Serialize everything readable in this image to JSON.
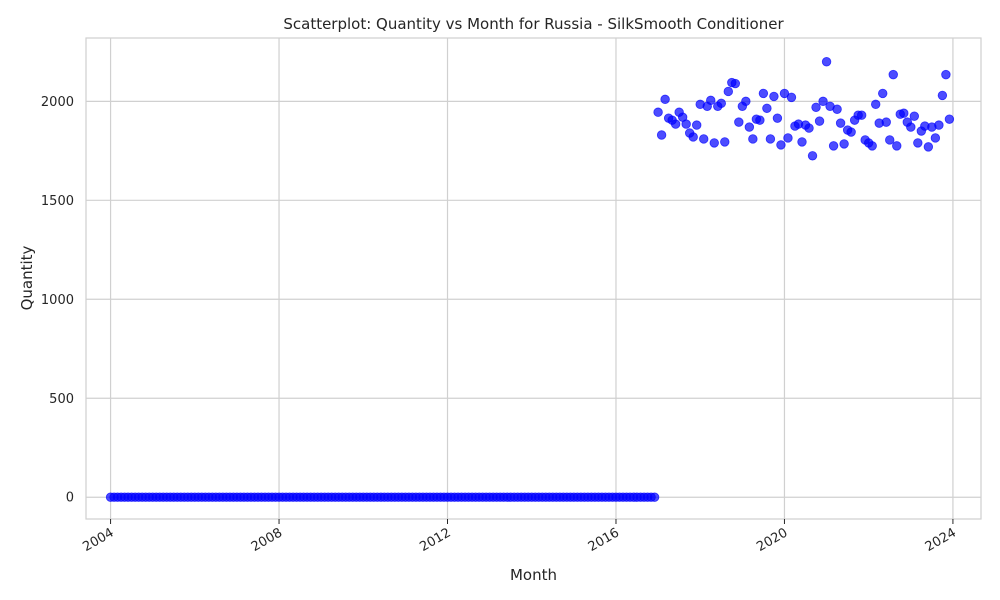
{
  "chart_data": {
    "type": "scatter",
    "title": "Scatterplot: Quantity vs Month for Russia - SilkSmooth Conditioner",
    "xlabel": "Month",
    "ylabel": "Quantity",
    "grid": true,
    "legend": "none",
    "color": "#0000ff",
    "xlim": [
      "2003-06",
      "2024-09"
    ],
    "ylim": [
      -110,
      2320
    ],
    "x_ticks": [
      "2004",
      "2008",
      "2012",
      "2016",
      "2020",
      "2024"
    ],
    "y_ticks": [
      "0",
      "500",
      "1000",
      "1500",
      "2000"
    ],
    "zero_period": {
      "start": "2004-01",
      "end": "2016-12",
      "value": 0
    },
    "series": [
      {
        "values": [
          [
            "2017-01",
            1945
          ],
          [
            "2017-02",
            1830
          ],
          [
            "2017-03",
            2010
          ],
          [
            "2017-04",
            1915
          ],
          [
            "2017-05",
            1905
          ],
          [
            "2017-06",
            1885
          ],
          [
            "2017-07",
            1945
          ],
          [
            "2017-08",
            1920
          ],
          [
            "2017-09",
            1885
          ],
          [
            "2017-10",
            1840
          ],
          [
            "2017-11",
            1820
          ],
          [
            "2017-12",
            1880
          ],
          [
            "2018-01",
            1985
          ],
          [
            "2018-02",
            1810
          ],
          [
            "2018-03",
            1975
          ],
          [
            "2018-04",
            2005
          ],
          [
            "2018-05",
            1790
          ],
          [
            "2018-06",
            1975
          ],
          [
            "2018-07",
            1990
          ],
          [
            "2018-08",
            1795
          ],
          [
            "2018-09",
            2050
          ],
          [
            "2018-10",
            2095
          ],
          [
            "2018-11",
            2090
          ],
          [
            "2018-12",
            1895
          ],
          [
            "2019-01",
            1975
          ],
          [
            "2019-02",
            2000
          ],
          [
            "2019-03",
            1870
          ],
          [
            "2019-04",
            1810
          ],
          [
            "2019-05",
            1910
          ],
          [
            "2019-06",
            1905
          ],
          [
            "2019-07",
            2040
          ],
          [
            "2019-08",
            1965
          ],
          [
            "2019-09",
            1810
          ],
          [
            "2019-10",
            2025
          ],
          [
            "2019-11",
            1915
          ],
          [
            "2019-12",
            1780
          ],
          [
            "2020-01",
            2040
          ],
          [
            "2020-02",
            1815
          ],
          [
            "2020-03",
            2020
          ],
          [
            "2020-04",
            1875
          ],
          [
            "2020-05",
            1885
          ],
          [
            "2020-06",
            1795
          ],
          [
            "2020-07",
            1880
          ],
          [
            "2020-08",
            1865
          ],
          [
            "2020-09",
            1725
          ],
          [
            "2020-10",
            1970
          ],
          [
            "2020-11",
            1900
          ],
          [
            "2020-12",
            2000
          ],
          [
            "2021-01",
            2200
          ],
          [
            "2021-02",
            1975
          ],
          [
            "2021-03",
            1775
          ],
          [
            "2021-04",
            1960
          ],
          [
            "2021-05",
            1890
          ],
          [
            "2021-06",
            1785
          ],
          [
            "2021-07",
            1855
          ],
          [
            "2021-08",
            1845
          ],
          [
            "2021-09",
            1905
          ],
          [
            "2021-10",
            1930
          ],
          [
            "2021-11",
            1930
          ],
          [
            "2021-12",
            1805
          ],
          [
            "2022-01",
            1790
          ],
          [
            "2022-02",
            1775
          ],
          [
            "2022-03",
            1985
          ],
          [
            "2022-04",
            1890
          ],
          [
            "2022-05",
            2040
          ],
          [
            "2022-06",
            1895
          ],
          [
            "2022-07",
            1805
          ],
          [
            "2022-08",
            2135
          ],
          [
            "2022-09",
            1775
          ],
          [
            "2022-10",
            1935
          ],
          [
            "2022-11",
            1940
          ],
          [
            "2022-12",
            1895
          ],
          [
            "2023-01",
            1870
          ],
          [
            "2023-02",
            1925
          ],
          [
            "2023-03",
            1790
          ],
          [
            "2023-04",
            1850
          ],
          [
            "2023-05",
            1875
          ],
          [
            "2023-06",
            1770
          ],
          [
            "2023-07",
            1870
          ],
          [
            "2023-08",
            1815
          ],
          [
            "2023-09",
            1880
          ],
          [
            "2023-10",
            2030
          ],
          [
            "2023-11",
            2135
          ],
          [
            "2023-12",
            1910
          ]
        ]
      }
    ]
  }
}
